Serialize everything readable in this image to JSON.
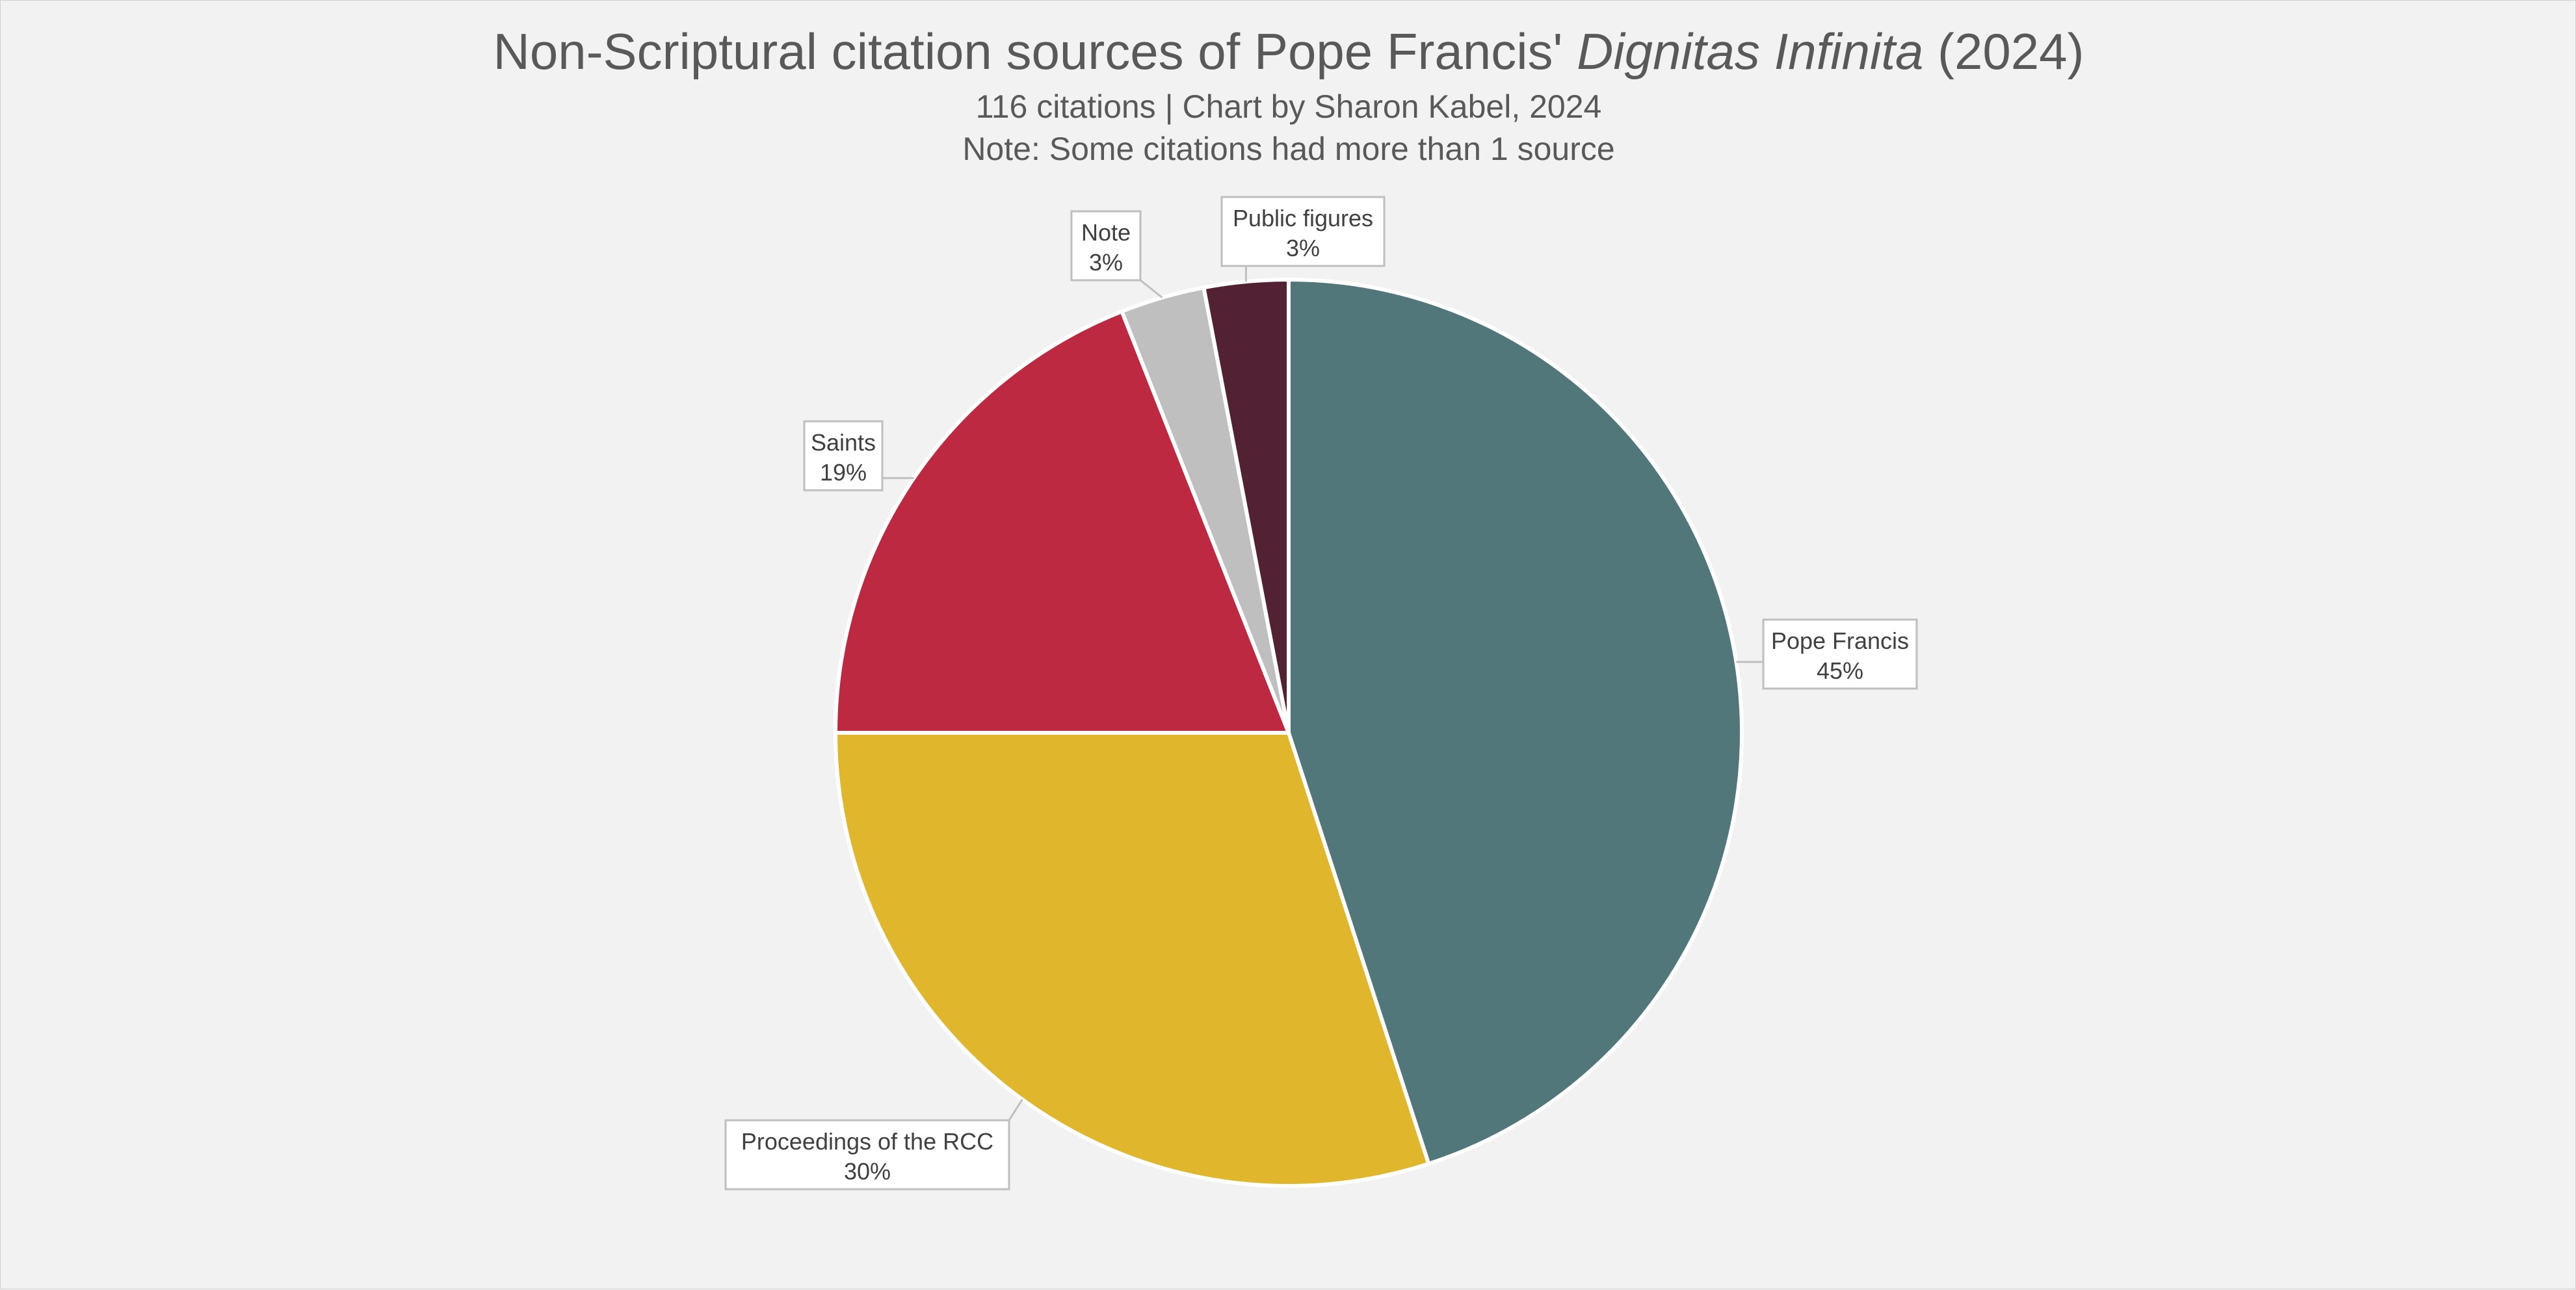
{
  "chart_data": {
    "type": "pie",
    "title": "Non-Scriptural citation sources of Pope Francis' ",
    "title_italic": "Dignitas Infinita",
    "title_suffix": " (2024)",
    "subtitle_lines": [
      "116 citations | Chart by Sharon Kabel, 2024",
      "Note: Some citations had more than 1 source"
    ],
    "start_angle_deg": 0,
    "direction": "clockwise",
    "legend": "none",
    "slices": [
      {
        "name": "Pope Francis",
        "value": 45,
        "label": "45%",
        "color": "#52777b"
      },
      {
        "name": "Proceedings of the RCC",
        "value": 30,
        "label": "30%",
        "color": "#dfb62c"
      },
      {
        "name": "Saints",
        "value": 19,
        "label": "19%",
        "color": "#be2942"
      },
      {
        "name": "Note",
        "value": 3,
        "label": "3%",
        "color": "#bfbfbf"
      },
      {
        "name": "Public figures",
        "value": 3,
        "label": "3%",
        "color": "#522234"
      }
    ]
  }
}
